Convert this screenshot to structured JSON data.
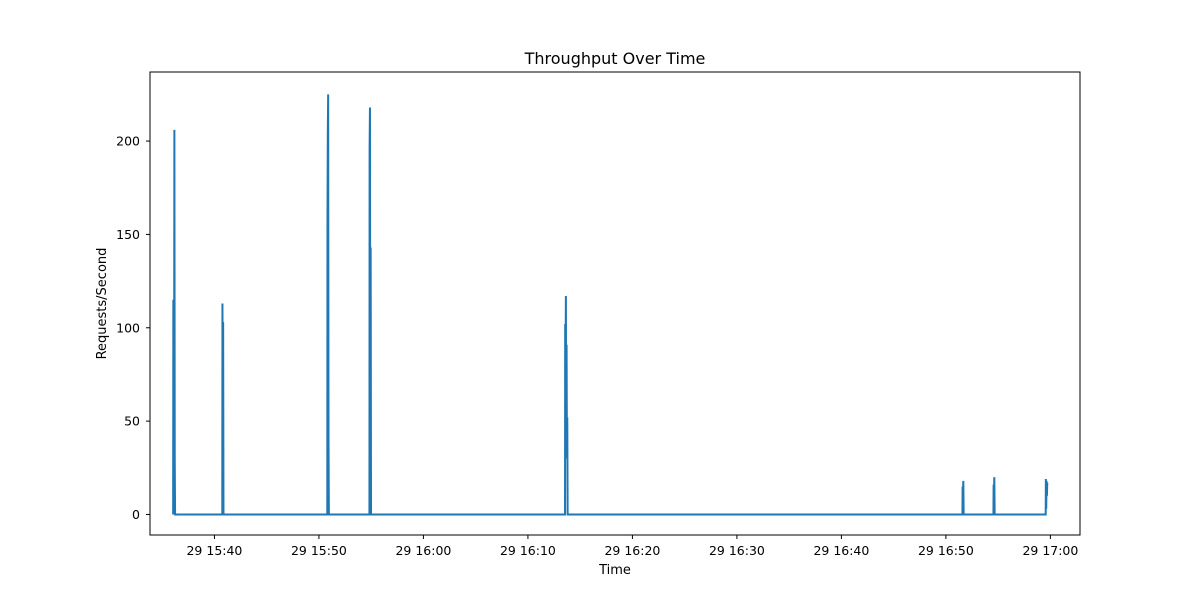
{
  "chart_data": {
    "type": "line",
    "title": "Throughput Over Time",
    "xlabel": "Time",
    "ylabel": "Requests/Second",
    "color": "#1f77b4",
    "grid": false,
    "xlim": [
      "29 15:33:50",
      "29 17:02:50"
    ],
    "ylim": [
      -11,
      237
    ],
    "x_ticks": [
      {
        "time": "29 15:40",
        "label": "29 15:40"
      },
      {
        "time": "29 15:50",
        "label": "29 15:50"
      },
      {
        "time": "29 16:00",
        "label": "29 16:00"
      },
      {
        "time": "29 16:10",
        "label": "29 16:10"
      },
      {
        "time": "29 16:20",
        "label": "29 16:20"
      },
      {
        "time": "29 16:30",
        "label": "29 16:30"
      },
      {
        "time": "29 16:40",
        "label": "29 16:40"
      },
      {
        "time": "29 16:50",
        "label": "29 16:50"
      },
      {
        "time": "29 17:00",
        "label": "29 17:00"
      }
    ],
    "y_ticks": [
      0,
      50,
      100,
      150,
      200
    ],
    "series": [
      {
        "points": [
          [
            "29 15:36:03",
            0
          ],
          [
            "29 15:36:04",
            115
          ],
          [
            "29 15:36:06",
            88
          ],
          [
            "29 15:36:08",
            14
          ],
          [
            "29 15:36:10",
            206
          ],
          [
            "29 15:36:12",
            30
          ],
          [
            "29 15:36:14",
            0
          ],
          [
            "29 15:40:45",
            0
          ],
          [
            "29 15:40:46",
            113
          ],
          [
            "29 15:40:48",
            30
          ],
          [
            "29 15:40:50",
            103
          ],
          [
            "29 15:40:52",
            0
          ],
          [
            "29 15:50:48",
            0
          ],
          [
            "29 15:50:49",
            155
          ],
          [
            "29 15:50:51",
            204
          ],
          [
            "29 15:50:53",
            225
          ],
          [
            "29 15:50:55",
            40
          ],
          [
            "29 15:50:57",
            0
          ],
          [
            "29 15:54:50",
            0
          ],
          [
            "29 15:54:51",
            196
          ],
          [
            "29 15:54:53",
            218
          ],
          [
            "29 15:54:55",
            60
          ],
          [
            "29 15:54:57",
            143
          ],
          [
            "29 15:54:59",
            0
          ],
          [
            "29 16:13:33",
            0
          ],
          [
            "29 16:13:34",
            102
          ],
          [
            "29 16:13:36",
            82
          ],
          [
            "29 16:13:38",
            117
          ],
          [
            "29 16:13:40",
            30
          ],
          [
            "29 16:13:42",
            91
          ],
          [
            "29 16:13:44",
            30
          ],
          [
            "29 16:13:46",
            52
          ],
          [
            "29 16:13:48",
            0
          ],
          [
            "29 16:51:35",
            0
          ],
          [
            "29 16:51:36",
            15
          ],
          [
            "29 16:51:38",
            10
          ],
          [
            "29 16:51:40",
            18
          ],
          [
            "29 16:51:42",
            0
          ],
          [
            "29 16:54:33",
            0
          ],
          [
            "29 16:54:34",
            16
          ],
          [
            "29 16:54:36",
            12
          ],
          [
            "29 16:54:38",
            20
          ],
          [
            "29 16:54:40",
            0
          ],
          [
            "29 16:59:33",
            0
          ],
          [
            "29 16:59:34",
            19
          ],
          [
            "29 16:59:36",
            3
          ],
          [
            "29 16:59:38",
            18
          ],
          [
            "29 16:59:40",
            10
          ],
          [
            "29 16:59:42",
            17
          ]
        ]
      }
    ]
  }
}
